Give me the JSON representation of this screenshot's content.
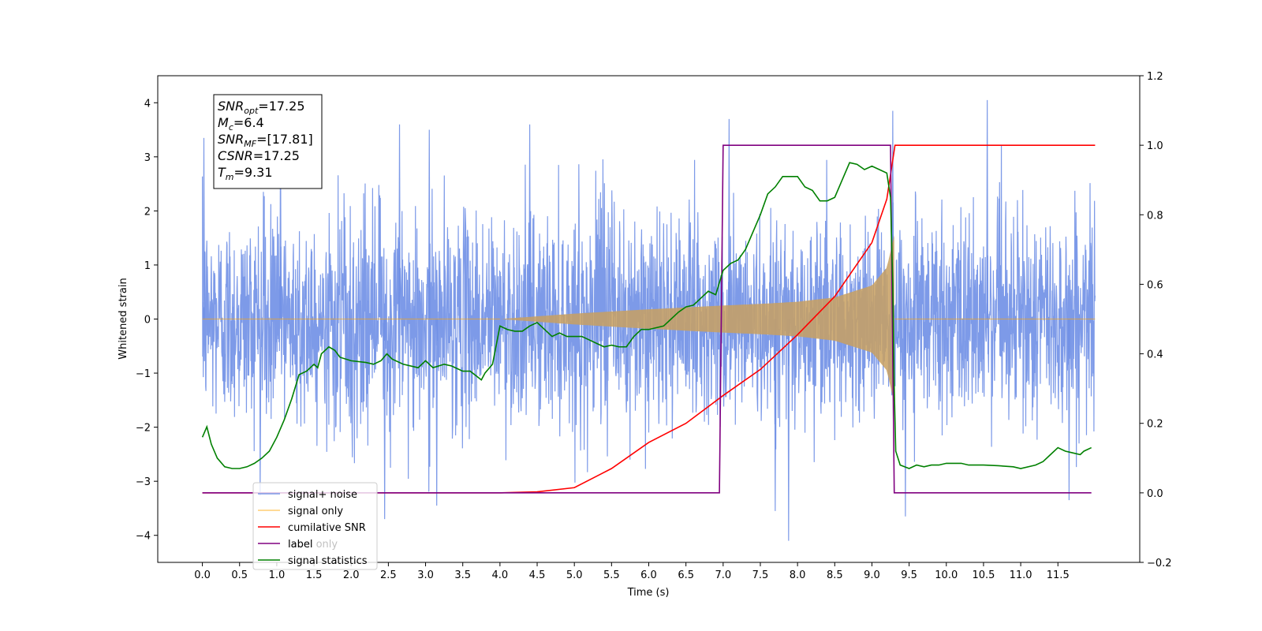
{
  "chart_data": {
    "type": "line",
    "title": "",
    "xlabel": "Time (s)",
    "ylabel_left": "Whitened strain",
    "ylabel_right": "",
    "xlim": [
      -0.6,
      12.6
    ],
    "ylim_left": [
      -4.5,
      4.5
    ],
    "ylim_right": [
      -0.2,
      1.2
    ],
    "xticks": [
      "0.0",
      "0.5",
      "1.0",
      "1.5",
      "2.0",
      "2.5",
      "3.0",
      "3.5",
      "4.0",
      "4.5",
      "5.0",
      "5.5",
      "6.0",
      "6.5",
      "7.0",
      "7.5",
      "8.0",
      "8.5",
      "9.0",
      "9.5",
      "10.0",
      "10.5",
      "11.0",
      "11.5"
    ],
    "yticks_left": [
      "4",
      "3",
      "2",
      "1",
      "0",
      "−1",
      "−2",
      "−3",
      "−4"
    ],
    "yticks_right": [
      "1.2",
      "1.0",
      "0.8",
      "0.6",
      "0.4",
      "0.2",
      "0.0",
      "−0.2"
    ],
    "grid": false,
    "legend_position": "lower-left",
    "annotation": {
      "lines": [
        {
          "main": "SNR",
          "sub": "opt",
          "value": "=17.25"
        },
        {
          "main": "M",
          "sub": "c",
          "value": "=6.4"
        },
        {
          "main": "SNR",
          "sub": "MF",
          "value": "=[17.81]"
        },
        {
          "main": "CSNR",
          "sub": "",
          "value": "=17.25"
        },
        {
          "main": "T",
          "sub": "m",
          "value": "=9.31"
        }
      ]
    },
    "series": [
      {
        "name": "signal+ noise",
        "axis": "left",
        "color": "#6f8fe6",
        "t_range": [
          0.0,
          12.0
        ],
        "noise_sigma": 1.0,
        "noise_typical_max": 3.0,
        "noise_peak_max": 4.05,
        "noise_peak_min": -4.1
      },
      {
        "name": "signal only",
        "axis": "left",
        "color": "#ffa500",
        "t_start": 4.0,
        "t_merger": 9.31,
        "amplitude_points": [
          [
            4.0,
            0.0
          ],
          [
            5.0,
            0.1
          ],
          [
            6.0,
            0.18
          ],
          [
            7.0,
            0.25
          ],
          [
            7.5,
            0.28
          ],
          [
            8.0,
            0.32
          ],
          [
            8.5,
            0.4
          ],
          [
            9.0,
            0.62
          ],
          [
            9.2,
            0.95
          ],
          [
            9.3,
            1.55
          ],
          [
            9.31,
            0.0
          ]
        ]
      },
      {
        "name": "cumilative SNR",
        "axis": "right",
        "color": "#ff0000",
        "points": [
          [
            0.0,
            0.0
          ],
          [
            4.0,
            0.0
          ],
          [
            4.5,
            0.003
          ],
          [
            5.0,
            0.015
          ],
          [
            5.5,
            0.07
          ],
          [
            6.0,
            0.145
          ],
          [
            6.5,
            0.2
          ],
          [
            7.0,
            0.28
          ],
          [
            7.5,
            0.355
          ],
          [
            8.0,
            0.455
          ],
          [
            8.5,
            0.565
          ],
          [
            9.0,
            0.72
          ],
          [
            9.2,
            0.845
          ],
          [
            9.31,
            1.0
          ],
          [
            12.0,
            1.0
          ]
        ]
      },
      {
        "name": "label",
        "axis": "right",
        "color": "#800080",
        "points": [
          [
            0.0,
            0.0
          ],
          [
            6.95,
            0.0
          ],
          [
            7.0,
            1.0
          ],
          [
            9.25,
            1.0
          ],
          [
            9.3,
            0.0
          ],
          [
            11.95,
            0.0
          ]
        ]
      },
      {
        "name": "label only",
        "axis": "right",
        "color": "#800080",
        "hidden": true,
        "points": []
      },
      {
        "name": "signal statistics",
        "axis": "right",
        "color": "#008000",
        "points": [
          [
            0.0,
            0.16
          ],
          [
            0.06,
            0.19
          ],
          [
            0.12,
            0.14
          ],
          [
            0.2,
            0.1
          ],
          [
            0.3,
            0.075
          ],
          [
            0.4,
            0.07
          ],
          [
            0.5,
            0.07
          ],
          [
            0.6,
            0.075
          ],
          [
            0.7,
            0.085
          ],
          [
            0.8,
            0.1
          ],
          [
            0.9,
            0.12
          ],
          [
            1.0,
            0.16
          ],
          [
            1.1,
            0.21
          ],
          [
            1.2,
            0.27
          ],
          [
            1.3,
            0.34
          ],
          [
            1.4,
            0.35
          ],
          [
            1.5,
            0.37
          ],
          [
            1.55,
            0.36
          ],
          [
            1.6,
            0.4
          ],
          [
            1.7,
            0.42
          ],
          [
            1.78,
            0.41
          ],
          [
            1.85,
            0.39
          ],
          [
            2.0,
            0.38
          ],
          [
            2.2,
            0.375
          ],
          [
            2.3,
            0.37
          ],
          [
            2.4,
            0.38
          ],
          [
            2.48,
            0.4
          ],
          [
            2.55,
            0.385
          ],
          [
            2.7,
            0.37
          ],
          [
            2.9,
            0.36
          ],
          [
            3.0,
            0.38
          ],
          [
            3.1,
            0.36
          ],
          [
            3.25,
            0.37
          ],
          [
            3.35,
            0.365
          ],
          [
            3.5,
            0.35
          ],
          [
            3.6,
            0.35
          ],
          [
            3.75,
            0.325
          ],
          [
            3.8,
            0.345
          ],
          [
            3.9,
            0.37
          ],
          [
            4.0,
            0.48
          ],
          [
            4.1,
            0.47
          ],
          [
            4.2,
            0.465
          ],
          [
            4.3,
            0.465
          ],
          [
            4.4,
            0.48
          ],
          [
            4.5,
            0.49
          ],
          [
            4.6,
            0.47
          ],
          [
            4.7,
            0.45
          ],
          [
            4.8,
            0.46
          ],
          [
            4.9,
            0.45
          ],
          [
            5.0,
            0.45
          ],
          [
            5.1,
            0.45
          ],
          [
            5.2,
            0.44
          ],
          [
            5.3,
            0.43
          ],
          [
            5.4,
            0.42
          ],
          [
            5.5,
            0.425
          ],
          [
            5.6,
            0.42
          ],
          [
            5.7,
            0.42
          ],
          [
            5.8,
            0.45
          ],
          [
            5.9,
            0.47
          ],
          [
            6.0,
            0.47
          ],
          [
            6.1,
            0.475
          ],
          [
            6.2,
            0.48
          ],
          [
            6.3,
            0.5
          ],
          [
            6.4,
            0.52
          ],
          [
            6.5,
            0.535
          ],
          [
            6.6,
            0.54
          ],
          [
            6.7,
            0.56
          ],
          [
            6.8,
            0.58
          ],
          [
            6.9,
            0.57
          ],
          [
            7.0,
            0.64
          ],
          [
            7.1,
            0.66
          ],
          [
            7.2,
            0.67
          ],
          [
            7.3,
            0.7
          ],
          [
            7.4,
            0.75
          ],
          [
            7.5,
            0.8
          ],
          [
            7.6,
            0.86
          ],
          [
            7.7,
            0.88
          ],
          [
            7.8,
            0.91
          ],
          [
            7.9,
            0.91
          ],
          [
            8.0,
            0.91
          ],
          [
            8.1,
            0.88
          ],
          [
            8.2,
            0.87
          ],
          [
            8.3,
            0.84
          ],
          [
            8.4,
            0.84
          ],
          [
            8.5,
            0.85
          ],
          [
            8.6,
            0.9
          ],
          [
            8.7,
            0.95
          ],
          [
            8.8,
            0.945
          ],
          [
            8.9,
            0.93
          ],
          [
            9.0,
            0.94
          ],
          [
            9.1,
            0.93
          ],
          [
            9.2,
            0.92
          ],
          [
            9.25,
            0.85
          ],
          [
            9.28,
            0.6
          ],
          [
            9.3,
            0.3
          ],
          [
            9.32,
            0.12
          ],
          [
            9.38,
            0.08
          ],
          [
            9.5,
            0.07
          ],
          [
            9.6,
            0.08
          ],
          [
            9.7,
            0.075
          ],
          [
            9.8,
            0.08
          ],
          [
            9.9,
            0.08
          ],
          [
            10.0,
            0.085
          ],
          [
            10.1,
            0.085
          ],
          [
            10.2,
            0.085
          ],
          [
            10.3,
            0.08
          ],
          [
            10.5,
            0.08
          ],
          [
            10.7,
            0.078
          ],
          [
            10.9,
            0.075
          ],
          [
            11.0,
            0.07
          ],
          [
            11.2,
            0.08
          ],
          [
            11.3,
            0.09
          ],
          [
            11.4,
            0.11
          ],
          [
            11.5,
            0.13
          ],
          [
            11.6,
            0.12
          ],
          [
            11.7,
            0.115
          ],
          [
            11.8,
            0.11
          ],
          [
            11.85,
            0.12
          ],
          [
            11.95,
            0.13
          ]
        ]
      }
    ]
  }
}
